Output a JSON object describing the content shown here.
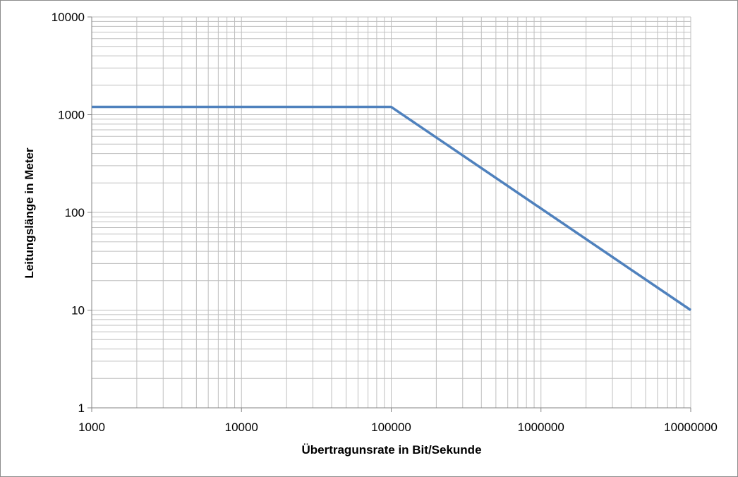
{
  "chart_data": {
    "type": "line",
    "xlabel": "Übertragunsrate in Bit/Sekunde",
    "ylabel": "Leitungslänge in Meter",
    "x_scale": "log",
    "y_scale": "log",
    "xlim": [
      1000,
      10000000
    ],
    "ylim": [
      1,
      10000
    ],
    "x_ticks": [
      "1000",
      "10000",
      "100000",
      "1000000",
      "10000000"
    ],
    "y_ticks": [
      "1",
      "10",
      "100",
      "1000",
      "10000"
    ],
    "grid": true,
    "legend": "none",
    "series": [
      {
        "x": [
          1000,
          100000,
          10000000
        ],
        "y": [
          1200,
          1200,
          10
        ],
        "color": "#4f81bd"
      }
    ]
  },
  "colors": {
    "grid": "#bfbfbf",
    "axis": "#868686",
    "border": "#8c8c8c"
  }
}
